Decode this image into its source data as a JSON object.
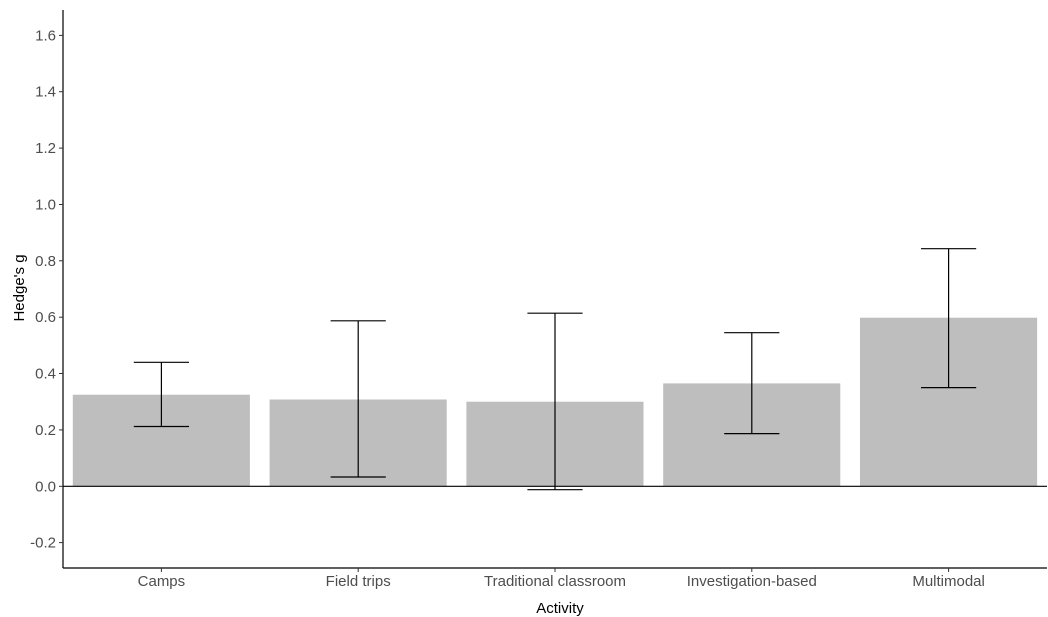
{
  "chart_data": {
    "type": "bar",
    "title": "",
    "xlabel": "Activity",
    "ylabel": "Hedge's g",
    "categories": [
      "Camps",
      "Field trips",
      "Traditional classroom",
      "Investigation-based",
      "Multimodal"
    ],
    "values": [
      0.325,
      0.308,
      0.3,
      0.365,
      0.598
    ],
    "error_lower": [
      0.212,
      0.033,
      -0.012,
      0.187,
      0.35
    ],
    "error_upper": [
      0.44,
      0.587,
      0.614,
      0.545,
      0.843
    ],
    "ylim": [
      -0.29,
      1.69
    ],
    "yticks": [
      -0.2,
      0.0,
      0.2,
      0.4,
      0.6,
      0.8,
      1.0,
      1.2,
      1.4,
      1.6
    ],
    "ytick_labels": [
      "-0.2",
      "0.0",
      "0.2",
      "0.4",
      "0.6",
      "0.8",
      "1.0",
      "1.2",
      "1.4",
      "1.6"
    ],
    "grid": false,
    "legend": "none",
    "bar_color": "#bebebe",
    "error_bar_color": "#000000",
    "zero_line_color": "#000000"
  }
}
